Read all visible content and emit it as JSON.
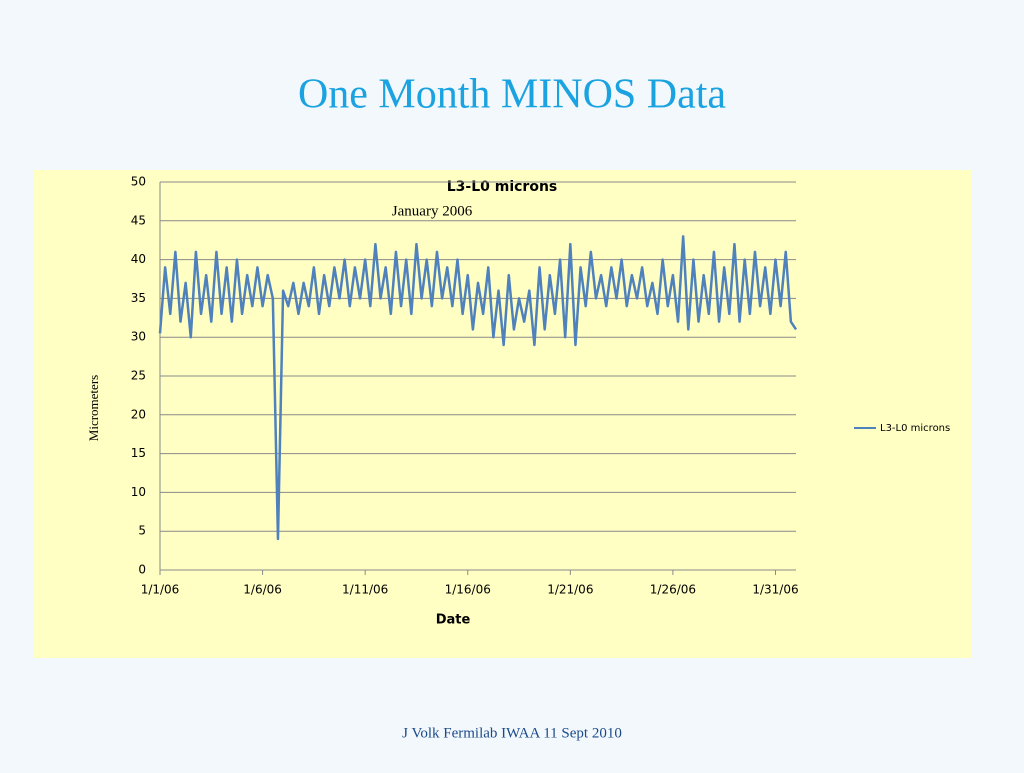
{
  "slide_title": "One Month MINOS Data",
  "footer": "J Volk Fermilab IWAA 11 Sept 2010",
  "chart_data": {
    "type": "line",
    "title": "L3-L0 microns",
    "subtitle": "January 2006",
    "x_label": "Date",
    "y_label": "Micrometers",
    "x": [
      0,
      0.25,
      0.5,
      0.75,
      1,
      1.25,
      1.5,
      1.75,
      2,
      2.25,
      2.5,
      2.75,
      3,
      3.25,
      3.5,
      3.75,
      4,
      4.25,
      4.5,
      4.75,
      5,
      5.25,
      5.5,
      5.75,
      6,
      6.25,
      6.5,
      6.75,
      7,
      7.25,
      7.5,
      7.75,
      8,
      8.25,
      8.5,
      8.75,
      9,
      9.25,
      9.5,
      9.75,
      10,
      10.25,
      10.5,
      10.75,
      11,
      11.25,
      11.5,
      11.75,
      12,
      12.25,
      12.5,
      12.75,
      13,
      13.25,
      13.5,
      13.75,
      14,
      14.25,
      14.5,
      14.75,
      15,
      15.25,
      15.5,
      15.75,
      16,
      16.25,
      16.5,
      16.75,
      17,
      17.25,
      17.5,
      17.75,
      18,
      18.25,
      18.5,
      18.75,
      19,
      19.25,
      19.5,
      19.75,
      20,
      20.25,
      20.5,
      20.75,
      21,
      21.25,
      21.5,
      21.75,
      22,
      22.25,
      22.5,
      22.75,
      23,
      23.25,
      23.5,
      23.75,
      24,
      24.25,
      24.5,
      24.75,
      25,
      25.25,
      25.5,
      25.75,
      26,
      26.25,
      26.5,
      26.75,
      27,
      27.25,
      27.5,
      27.75,
      28,
      28.25,
      28.5,
      28.75,
      29,
      29.25,
      29.5,
      29.75,
      30,
      30.25,
      30.5,
      30.75,
      31
    ],
    "series": [
      {
        "name": "L3-L0 microns",
        "color": "#4f81bd",
        "values": [
          30.5,
          39,
          33,
          41,
          32,
          37,
          30,
          41,
          33,
          38,
          32,
          41,
          33,
          39,
          32,
          40,
          33,
          38,
          34,
          39,
          34,
          38,
          35,
          4,
          36,
          34,
          37,
          33,
          37,
          34,
          39,
          33,
          38,
          34,
          39,
          35,
          40,
          34,
          39,
          35,
          40,
          34,
          42,
          35,
          39,
          33,
          41,
          34,
          40,
          33,
          42,
          35,
          40,
          34,
          41,
          35,
          39,
          34,
          40,
          33,
          38,
          31,
          37,
          33,
          39,
          30,
          36,
          29,
          38,
          31,
          35,
          32,
          36,
          29,
          39,
          31,
          38,
          33,
          40,
          30,
          42,
          29,
          39,
          34,
          41,
          35,
          38,
          34,
          39,
          35,
          40,
          34,
          38,
          35,
          39,
          34,
          37,
          33,
          40,
          34,
          38,
          32,
          43,
          31,
          40,
          32,
          38,
          33,
          41,
          32,
          39,
          33,
          42,
          32,
          40,
          33,
          41,
          34,
          39,
          33,
          40,
          34,
          41,
          32,
          31
        ]
      }
    ],
    "xlim": [
      0,
      31
    ],
    "xticks": [
      {
        "value": 0,
        "label": "1/1/06"
      },
      {
        "value": 5,
        "label": "1/6/06"
      },
      {
        "value": 10,
        "label": "1/11/06"
      },
      {
        "value": 15,
        "label": "1/16/06"
      },
      {
        "value": 20,
        "label": "1/21/06"
      },
      {
        "value": 25,
        "label": "1/26/06"
      },
      {
        "value": 30,
        "label": "1/31/06"
      }
    ],
    "ylim": [
      0,
      50
    ],
    "yticks": [
      0,
      5,
      10,
      15,
      20,
      25,
      30,
      35,
      40,
      45,
      50
    ],
    "grid": true,
    "legend": "right"
  }
}
